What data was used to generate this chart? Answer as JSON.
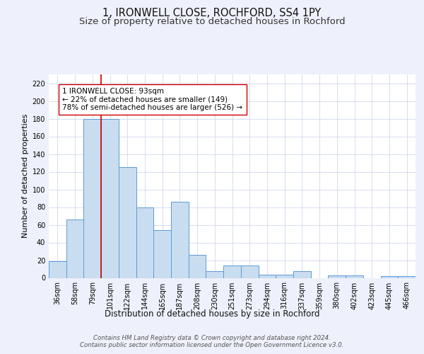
{
  "title": "1, IRONWELL CLOSE, ROCHFORD, SS4 1PY",
  "subtitle": "Size of property relative to detached houses in Rochford",
  "xlabel": "Distribution of detached houses by size in Rochford",
  "ylabel": "Number of detached properties",
  "categories": [
    "36sqm",
    "58sqm",
    "79sqm",
    "101sqm",
    "122sqm",
    "144sqm",
    "165sqm",
    "187sqm",
    "208sqm",
    "230sqm",
    "251sqm",
    "273sqm",
    "294sqm",
    "316sqm",
    "337sqm",
    "359sqm",
    "380sqm",
    "402sqm",
    "423sqm",
    "445sqm",
    "466sqm"
  ],
  "values": [
    19,
    66,
    180,
    180,
    125,
    80,
    54,
    86,
    26,
    8,
    14,
    14,
    4,
    4,
    8,
    0,
    3,
    3,
    0,
    2,
    2
  ],
  "bar_color": "#c9ddf0",
  "bar_edge_color": "#5b9bd5",
  "vline_x": 2.5,
  "vline_color": "#cc0000",
  "annotation_text": "1 IRONWELL CLOSE: 93sqm\n← 22% of detached houses are smaller (149)\n78% of semi-detached houses are larger (526) →",
  "ylim": [
    0,
    230
  ],
  "yticks": [
    0,
    20,
    40,
    60,
    80,
    100,
    120,
    140,
    160,
    180,
    200,
    220
  ],
  "background_color": "#eef1fb",
  "plot_background": "#ffffff",
  "grid_color": "#c8d0e8",
  "footer": "Contains HM Land Registry data © Crown copyright and database right 2024.\nContains public sector information licensed under the Open Government Licence v3.0.",
  "title_fontsize": 10.5,
  "subtitle_fontsize": 9.5,
  "xlabel_fontsize": 8.5,
  "ylabel_fontsize": 8,
  "tick_fontsize": 7,
  "annotation_fontsize": 7.5
}
